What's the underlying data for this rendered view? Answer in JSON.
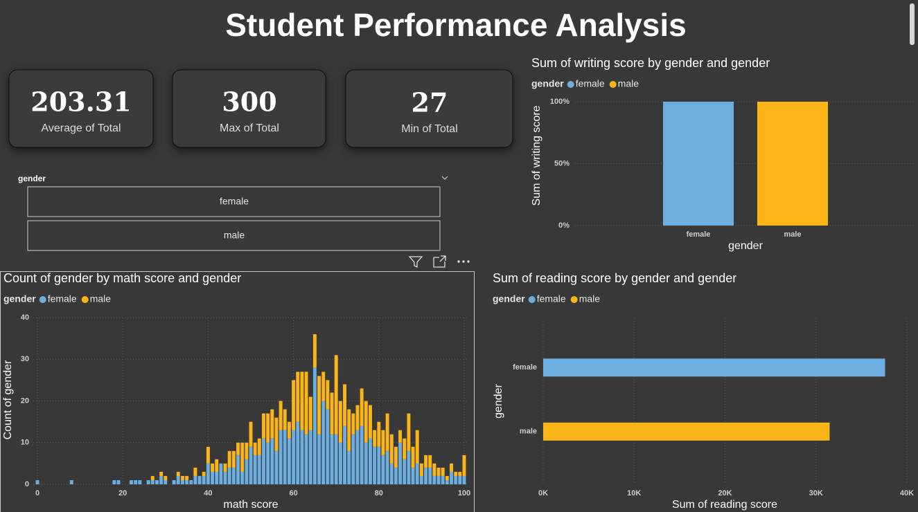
{
  "header": {
    "title": "Student Performance Analysis"
  },
  "cards": [
    {
      "value": 203.31,
      "label": "Average of Total"
    },
    {
      "value": 300,
      "label": "Max of Total"
    },
    {
      "value": 27,
      "label": "Min of Total"
    }
  ],
  "slicer": {
    "title": "gender",
    "options": [
      "female",
      "male"
    ]
  },
  "chart_data": [
    {
      "type": "bar",
      "title": "Sum of writing score by gender and gender",
      "legend_title": "gender",
      "categories": [
        "female",
        "male"
      ],
      "series": [
        {
          "name": "female",
          "color": "#6caee0",
          "values": [
            100,
            null
          ]
        },
        {
          "name": "male",
          "color": "#fbb516",
          "values": [
            null,
            100
          ]
        }
      ],
      "ylim": [
        0,
        100
      ],
      "yticks": [
        {
          "value": 0,
          "label": "0%"
        },
        {
          "value": 50,
          "label": "50%"
        },
        {
          "value": 100,
          "label": "100%"
        }
      ],
      "x_label": "gender",
      "y_label": "Sum of writing score",
      "grid": true
    },
    {
      "type": "stacked_column",
      "title": "Count of gender by math score and gender",
      "legend_title": "gender",
      "x": [
        0,
        8,
        18,
        19,
        22,
        23,
        24,
        26,
        27,
        28,
        29,
        30,
        32,
        33,
        34,
        35,
        36,
        37,
        38,
        39,
        40,
        41,
        42,
        43,
        44,
        45,
        46,
        47,
        48,
        49,
        50,
        51,
        52,
        53,
        54,
        55,
        56,
        57,
        58,
        59,
        60,
        61,
        62,
        63,
        64,
        65,
        66,
        67,
        68,
        69,
        70,
        71,
        72,
        73,
        74,
        75,
        76,
        77,
        78,
        79,
        80,
        81,
        82,
        83,
        84,
        85,
        86,
        87,
        88,
        89,
        90,
        91,
        92,
        93,
        94,
        95,
        96,
        97,
        98,
        99,
        100
      ],
      "series": [
        {
          "name": "female",
          "color": "#6caee0",
          "values": [
            1,
            1,
            1,
            1,
            1,
            1,
            1,
            1,
            1,
            1,
            2,
            1,
            1,
            2,
            1,
            1,
            1,
            2,
            2,
            2,
            5,
            3,
            3,
            5,
            3,
            4,
            4,
            7,
            3,
            6,
            9,
            7,
            7,
            11,
            10,
            11,
            8,
            13,
            13,
            11,
            13,
            15,
            13,
            12,
            13,
            28,
            12,
            20,
            18,
            12,
            12,
            10,
            14,
            8,
            12,
            13,
            14,
            10,
            11,
            9,
            9,
            7,
            8,
            5,
            4,
            10,
            6,
            8,
            4,
            5,
            2,
            4,
            4,
            2,
            2,
            2,
            1,
            3,
            2,
            2,
            2
          ]
        },
        {
          "name": "male",
          "color": "#fbb516",
          "values": [
            0,
            0,
            0,
            0,
            0,
            0,
            0,
            0,
            1,
            0,
            1,
            1,
            0,
            1,
            1,
            1,
            0,
            2,
            0,
            1,
            4,
            2,
            3,
            0,
            2,
            4,
            4,
            3,
            7,
            4,
            6,
            3,
            4,
            6,
            7,
            7,
            8,
            7,
            5,
            4,
            12,
            12,
            14,
            15,
            8,
            8,
            14,
            7,
            7,
            10,
            19,
            10,
            10,
            10,
            5,
            6,
            9,
            10,
            8,
            4,
            6,
            6,
            9,
            7,
            5,
            3,
            5,
            9,
            5,
            8,
            3,
            3,
            3,
            3,
            2,
            2,
            1,
            2,
            1,
            1,
            5
          ]
        }
      ],
      "xlim": [
        0,
        100
      ],
      "xticks": [
        0,
        20,
        40,
        60,
        80,
        100
      ],
      "ylim": [
        0,
        40
      ],
      "yticks": [
        0,
        10,
        20,
        30,
        40
      ],
      "x_label": "math score",
      "y_label": "Count of gender",
      "grid": true
    },
    {
      "type": "hbar",
      "title": "Sum of reading score by gender and gender",
      "legend_title": "gender",
      "categories": [
        "female",
        "male"
      ],
      "series": [
        {
          "name": "female",
          "color": "#6caee0",
          "values": [
            37600,
            null
          ]
        },
        {
          "name": "male",
          "color": "#fbb516",
          "values": [
            null,
            31500
          ]
        }
      ],
      "xlim": [
        0,
        40000
      ],
      "xticks": [
        {
          "value": 0,
          "label": "0K"
        },
        {
          "value": 10000,
          "label": "10K"
        },
        {
          "value": 20000,
          "label": "20K"
        },
        {
          "value": 30000,
          "label": "30K"
        },
        {
          "value": 40000,
          "label": "40K"
        }
      ],
      "x_label": "Sum of reading score",
      "y_label": "gender",
      "grid": true
    }
  ]
}
